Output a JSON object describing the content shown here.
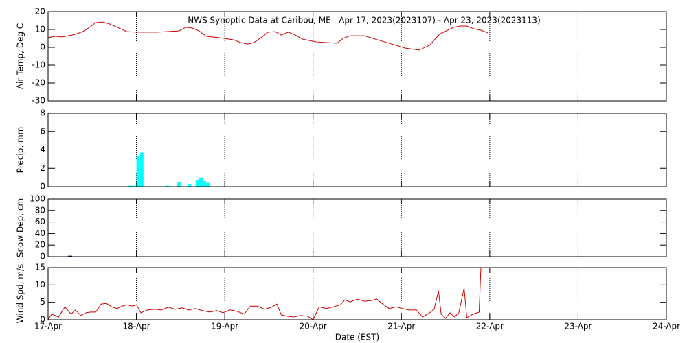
{
  "chart_data": [
    {
      "type": "line",
      "title": "NWS Synoptic Data at Caribou, ME   Apr 17, 2023(2023107) - Apr 23, 2023(2023113)",
      "y_label": "Air Temp, Deg C",
      "color": "#cc0000",
      "x": [
        0,
        0.08,
        0.16,
        0.23,
        0.31,
        0.39,
        0.47,
        0.54,
        0.62,
        0.7,
        0.82,
        0.89,
        1.01,
        1.24,
        1.48,
        1.56,
        1.63,
        1.71,
        1.79,
        1.94,
        2.1,
        2.18,
        2.26,
        2.33,
        2.41,
        2.49,
        2.57,
        2.64,
        2.72,
        2.8,
        2.88,
        2.96,
        3.03,
        3.27,
        3.34,
        3.42,
        3.58,
        3.73,
        3.89,
        4.04,
        4.2,
        4.32,
        4.43,
        4.59,
        4.67,
        4.74,
        4.82,
        4.9,
        4.98
      ],
      "values": [
        5.4,
        6.2,
        5.8,
        6.5,
        7.3,
        8.8,
        11.2,
        13.8,
        14.2,
        13,
        10.4,
        8.8,
        8.5,
        8.5,
        9.2,
        11.2,
        10.8,
        9.2,
        6.2,
        5.4,
        4.2,
        2.7,
        1.9,
        2.7,
        5.4,
        8.5,
        8.8,
        6.9,
        8.5,
        6.9,
        4.6,
        3.8,
        3.1,
        2.3,
        5,
        6.5,
        6.5,
        4.2,
        1.9,
        -0.4,
        -1.5,
        1.2,
        7.3,
        11.2,
        11.9,
        11.9,
        10.4,
        9.6,
        8.1
      ],
      "ylim": [
        -30,
        20
      ],
      "yticks": [
        -30,
        -20,
        -10,
        0,
        10,
        20
      ]
    },
    {
      "type": "bar",
      "y_label": "Precip, mm",
      "color": "#00ffff",
      "x": [
        0.93,
        0.97,
        1.02,
        1.06,
        1.35,
        1.48,
        1.6,
        1.69,
        1.73,
        1.77,
        1.81
      ],
      "values": [
        0.1,
        0.1,
        3.3,
        3.7,
        0.1,
        0.5,
        0.3,
        0.7,
        1.0,
        0.6,
        0.4
      ],
      "ylim": [
        0,
        8
      ],
      "yticks": [
        0,
        2,
        4,
        6,
        8
      ]
    },
    {
      "type": "outline-bar",
      "y_label": "Snow Dep, cm",
      "color": "#000080",
      "x": [
        0.25
      ],
      "values": [
        1
      ],
      "ylim": [
        0,
        100
      ],
      "yticks": [
        0,
        20,
        40,
        60,
        80,
        100
      ]
    },
    {
      "type": "line",
      "y_label": "Wind Spd, m/s",
      "color": "#cc0000",
      "x_label": "Date (EST)",
      "x": [
        0,
        0.04,
        0.12,
        0.19,
        0.26,
        0.31,
        0.37,
        0.43,
        0.48,
        0.54,
        0.6,
        0.66,
        0.72,
        0.78,
        0.84,
        0.89,
        0.96,
        1.0,
        1.05,
        1.13,
        1.21,
        1.28,
        1.36,
        1.44,
        1.52,
        1.59,
        1.67,
        1.75,
        1.83,
        1.91,
        1.98,
        2.06,
        2.14,
        2.22,
        2.29,
        2.37,
        2.45,
        2.53,
        2.59,
        2.64,
        2.71,
        2.78,
        2.86,
        2.94,
        3.0,
        3.07,
        3.15,
        3.23,
        3.31,
        3.36,
        3.42,
        3.5,
        3.58,
        3.66,
        3.72,
        3.78,
        3.86,
        3.94,
        4.01,
        4.09,
        4.17,
        4.24,
        4.32,
        4.37,
        4.42,
        4.45,
        4.5,
        4.55,
        4.6,
        4.65,
        4.71,
        4.74,
        4.81,
        4.88,
        4.9
      ],
      "values": [
        0,
        1.6,
        0.8,
        3.7,
        1.6,
        2.8,
        1.2,
        2.0,
        2.2,
        2.2,
        4.5,
        4.7,
        3.7,
        3.2,
        3.9,
        4.3,
        3.9,
        4.3,
        2.0,
        2.8,
        3.0,
        2.8,
        3.6,
        3.0,
        3.4,
        2.8,
        3.2,
        2.6,
        2.2,
        2.6,
        2.0,
        2.8,
        2.4,
        1.6,
        3.9,
        3.9,
        3.0,
        3.6,
        4.5,
        1.4,
        1.0,
        0.8,
        1.2,
        1.0,
        0,
        3.7,
        3.2,
        3.7,
        4.3,
        5.7,
        5.1,
        5.9,
        5.3,
        5.5,
        5.9,
        4.7,
        3.2,
        3.7,
        3.2,
        2.8,
        2.8,
        0.8,
        2.0,
        3.0,
        8.3,
        1.6,
        0.4,
        2.0,
        0.8,
        2.0,
        9.1,
        0.6,
        1.6,
        2.2,
        15
      ],
      "ylim": [
        0,
        15
      ],
      "yticks": [
        0,
        5,
        10,
        15
      ],
      "xlim": [
        0,
        7
      ],
      "xticks": [
        {
          "value": 0,
          "label": "17-Apr"
        },
        {
          "value": 1,
          "label": "18-Apr"
        },
        {
          "value": 2,
          "label": "19-Apr"
        },
        {
          "value": 3,
          "label": "20-Apr"
        },
        {
          "value": 4,
          "label": "21-Apr"
        },
        {
          "value": 5,
          "label": "22-Apr"
        },
        {
          "value": 6,
          "label": "23-Apr"
        },
        {
          "value": 7,
          "label": "24-Apr"
        }
      ]
    }
  ]
}
